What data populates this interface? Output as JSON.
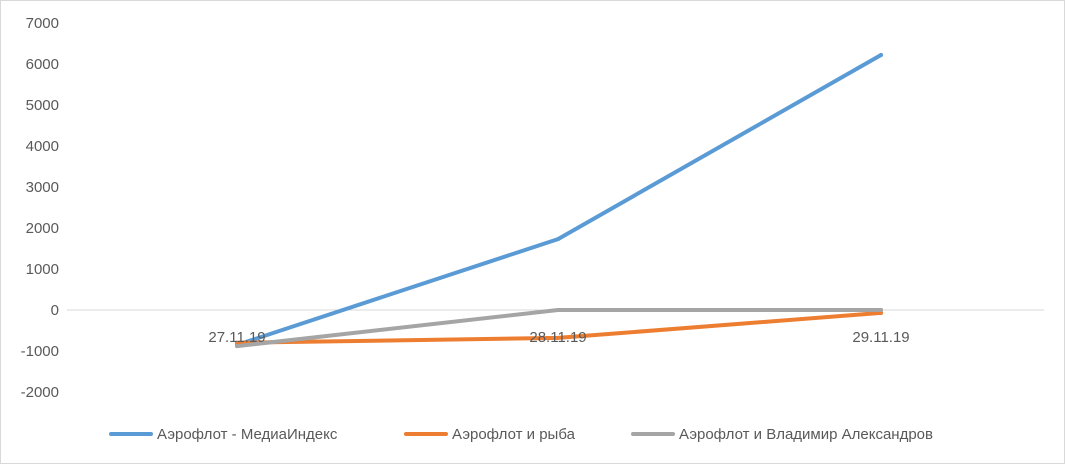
{
  "chart_data": {
    "type": "line",
    "categories": [
      "27.11.19",
      "28.11.19",
      "29.11.19"
    ],
    "series": [
      {
        "name": "Аэрофлот - МедиаИндекс",
        "values": [
          -850,
          1730,
          6220
        ],
        "color": "#5b9bd5"
      },
      {
        "name": "Аэрофлот и рыба",
        "values": [
          -800,
          -680,
          -70
        ],
        "color": "#ed7d31"
      },
      {
        "name": "Аэрофлот и Владимир Александров",
        "values": [
          -880,
          0,
          0
        ],
        "color": "#a5a5a5"
      }
    ],
    "ylim": [
      -2000,
      7000
    ],
    "yticks": [
      "7000",
      "6000",
      "5000",
      "4000",
      "3000",
      "2000",
      "1000",
      "0",
      "-1000",
      "-2000"
    ],
    "grid": false,
    "axis_line_color": "#d9d9d9",
    "legend_position": "bottom"
  }
}
